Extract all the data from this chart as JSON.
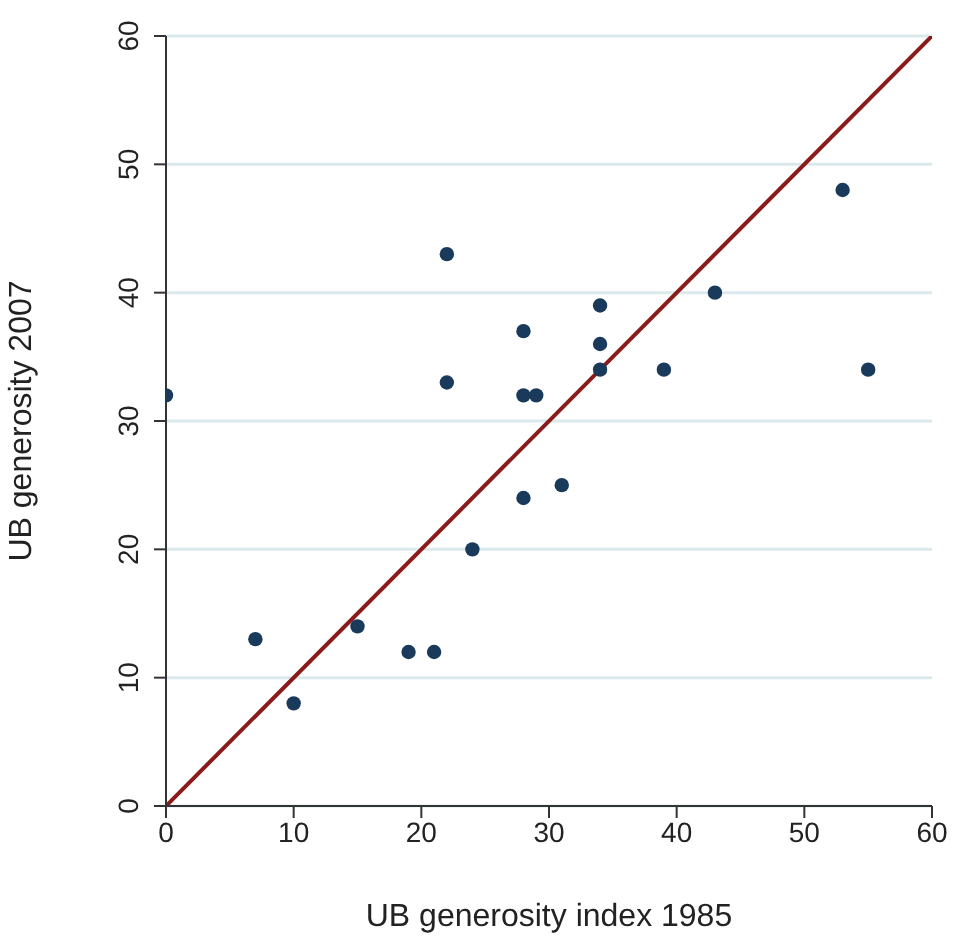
{
  "chart_data": {
    "type": "scatter",
    "xlabel": "UB generosity index 1985",
    "ylabel": "UB generosity 2007",
    "xlim": [
      0,
      60
    ],
    "ylim": [
      0,
      60
    ],
    "xticks": [
      0,
      10,
      20,
      30,
      40,
      50,
      60
    ],
    "yticks": [
      0,
      10,
      20,
      30,
      40,
      50,
      60
    ],
    "grid": "y",
    "marker": "circle",
    "series": [
      {
        "color": "#1a3a5c",
        "x": [
          0,
          7,
          10,
          15,
          19,
          21,
          22,
          22,
          24,
          28,
          28,
          29,
          28,
          31,
          34,
          34,
          34,
          39,
          43,
          53,
          55
        ],
        "values": [
          32,
          13,
          8,
          14,
          12,
          12,
          43,
          33,
          20,
          37,
          32,
          32,
          24,
          25,
          39,
          36,
          34,
          34,
          40,
          48,
          34
        ]
      },
      {
        "type": "line",
        "color": "#8b1a1a",
        "x": [
          0,
          60
        ],
        "values": [
          0,
          60
        ],
        "marker": "none",
        "line_style": "solid"
      }
    ]
  }
}
